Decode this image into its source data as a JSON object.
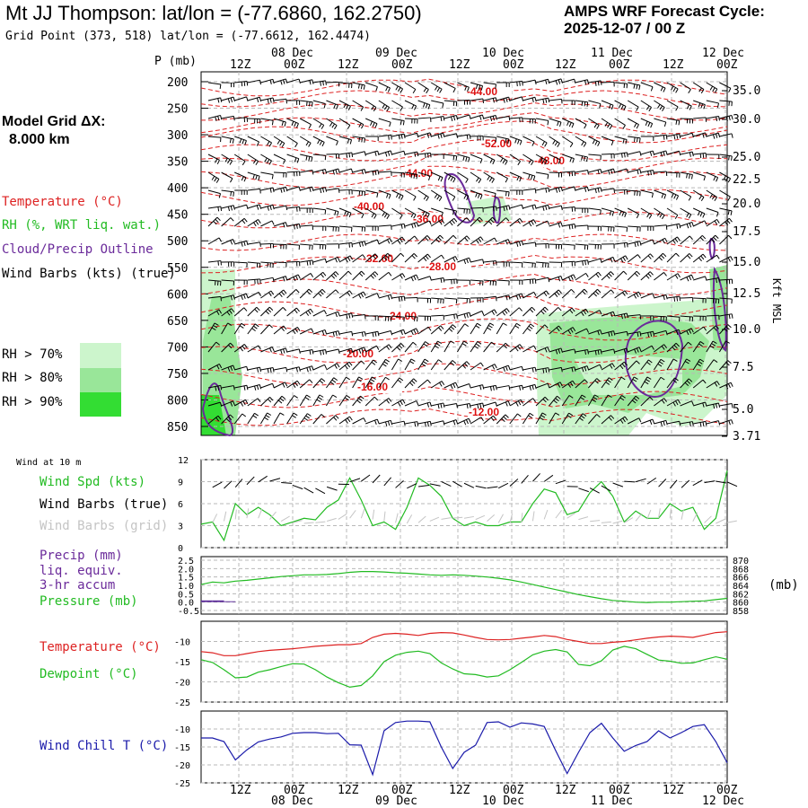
{
  "header": {
    "station_title": "Mt JJ Thompson:  lat/lon = (-77.6860, 162.2750)",
    "grid_point": "Grid Point (373, 518) lat/lon = (-77.6612, 162.4474)",
    "cycle_line1": "AMPS WRF Forecast Cycle:",
    "cycle_line2": "2025-12-07 / 00  Z",
    "model_grid_label": "Model Grid ΔX:",
    "model_grid_value": "8.000 km"
  },
  "legend": {
    "temperature": "Temperature (°C)",
    "rh": "RH (%, WRT liq. wat.)",
    "cloud": "Cloud/Precip Outline",
    "wind_barbs": "Wind Barbs (kts) (true)",
    "rh70": "RH > 70%",
    "rh80": "RH > 80%",
    "rh90": "RH > 90%",
    "rh70_color": "#ccf5cc",
    "rh80_color": "#99e699",
    "rh90_color": "#33dd33"
  },
  "time_axis": {
    "top_dates": [
      "08 Dec",
      "09 Dec",
      "10 Dec",
      "11 Dec",
      "12 Dec"
    ],
    "hour_labels": [
      "12Z",
      "00Z",
      "12Z",
      "00Z",
      "12Z",
      "00Z",
      "12Z",
      "00Z",
      "12Z",
      "00Z"
    ],
    "bottom_dates": [
      "08 Dec",
      "09 Dec",
      "10 Dec",
      "11 Dec",
      "12 Dec"
    ]
  },
  "chart_data": [
    {
      "type": "contour",
      "name": "vertical cross-section",
      "ylabel_left": "P (mb)",
      "ylabel_right": "Kft MSL",
      "y_ticks_left": [
        "200",
        "250",
        "300",
        "350",
        "400",
        "450",
        "500",
        "550",
        "600",
        "650",
        "700",
        "750",
        "800",
        "850"
      ],
      "y_ticks_right": [
        "35.0",
        "30.0",
        "25.0",
        "22.5",
        "20.0",
        "17.5",
        "15.0",
        "12.5",
        "10.0",
        "7.5",
        "5.0",
        "3.71"
      ],
      "temperature_contour_labels": [
        "-44.00",
        "-52.00",
        "-48.00",
        "-44.00",
        "-40.00",
        "-36.00",
        "-32.00",
        "-28.00",
        "-24.00",
        "-20.00",
        "-16.00",
        "-12.00"
      ]
    },
    {
      "type": "line",
      "name": "wind at 10 m",
      "title": "Wind at 10 m",
      "label_speed": "Wind Spd (kts)",
      "label_barbs_true": "Wind Barbs (true)",
      "label_barbs_grid": "Wind Barbs (grid)",
      "y_ticks": [
        "12",
        "9",
        "6",
        "3",
        "0"
      ],
      "ylim": [
        0,
        12
      ],
      "series": [
        {
          "name": "Wind Spd (kts)",
          "color": "#22bb22",
          "values": [
            3.2,
            3.5,
            1.0,
            6.0,
            4.5,
            5.5,
            4.5,
            3.0,
            3.5,
            4.0,
            3.8,
            5.5,
            6.5,
            9.5,
            6.5,
            3.0,
            3.5,
            2.5,
            5.5,
            9.5,
            8.5,
            7.0,
            4.0,
            3.0,
            3.5,
            3.0,
            3.0,
            3.5,
            3.5,
            6.0,
            8.0,
            7.5,
            4.5,
            5.0,
            7.5,
            9.0,
            7.0,
            3.5,
            5.0,
            4.0,
            4.0,
            6.0,
            5.0,
            5.5,
            2.5,
            4.0,
            10.5
          ]
        }
      ]
    },
    {
      "type": "line",
      "name": "precip and pressure",
      "label_precip": "Precip (mm)",
      "label_precip2": "liq. equiv.",
      "label_precip3": "3-hr accum",
      "label_pressure": "Pressure (mb)",
      "right_unit": "(mb)",
      "y_ticks_left": [
        "2.5",
        "2.0",
        "1.5",
        "1.0",
        "0.5",
        "0.0",
        "-0.5"
      ],
      "y_ticks_right": [
        "870",
        "868",
        "866",
        "864",
        "862",
        "860",
        "858"
      ],
      "ylim_left": [
        -0.5,
        2.5
      ],
      "ylim_right": [
        858,
        870
      ],
      "series": [
        {
          "name": "Pressure (mb)",
          "color": "#22bb22",
          "values": [
            864.2,
            864.8,
            864.6,
            865.0,
            865.2,
            865.5,
            865.8,
            866.1,
            866.3,
            866.5,
            866.5,
            866.6,
            866.8,
            867.1,
            867.3,
            867.3,
            867.2,
            867.0,
            866.9,
            866.7,
            866.5,
            866.4,
            866.5,
            866.4,
            866.2,
            866.0,
            865.7,
            865.3,
            864.8,
            864.2,
            863.6,
            863.0,
            862.4,
            861.8,
            861.3,
            860.8,
            860.4,
            860.2,
            860.0,
            859.9,
            860.0,
            860.0,
            860.1,
            860.2,
            860.3,
            860.6,
            860.9
          ]
        },
        {
          "name": "Precip (mm)",
          "color": "#5b2a99",
          "values": [
            0.1,
            0.1,
            0.05,
            0,
            0,
            0,
            0,
            0,
            0,
            0,
            0,
            0,
            0,
            0,
            0,
            0,
            0,
            0,
            0,
            0,
            0,
            0,
            0,
            0,
            0,
            0,
            0,
            0,
            0,
            0,
            0,
            0,
            0,
            0,
            0,
            0,
            0,
            0,
            0,
            0,
            0,
            0,
            0,
            0,
            0,
            0,
            0
          ]
        }
      ]
    },
    {
      "type": "line",
      "name": "temperature and dewpoint",
      "label_temp": "Temperature (°C)",
      "label_dew": "Dewpoint (°C)",
      "y_ticks": [
        "-10",
        "-15",
        "-20",
        "-25"
      ],
      "ylim": [
        -25,
        -5
      ],
      "series": [
        {
          "name": "Temperature (°C)",
          "color": "#dd2222",
          "values": [
            -12.5,
            -12.8,
            -13.5,
            -13.5,
            -13.0,
            -12.5,
            -12.2,
            -12.0,
            -11.8,
            -11.5,
            -11.2,
            -11.0,
            -10.8,
            -10.8,
            -10.5,
            -9.0,
            -8.2,
            -8.0,
            -8.2,
            -8.5,
            -8.0,
            -7.8,
            -7.9,
            -8.4,
            -9.0,
            -9.5,
            -9.6,
            -9.5,
            -9.2,
            -8.9,
            -8.5,
            -8.8,
            -9.5,
            -10.0,
            -10.5,
            -10.5,
            -10.2,
            -10.0,
            -9.6,
            -9.2,
            -8.9,
            -8.7,
            -8.8,
            -9.0,
            -8.4,
            -7.8,
            -7.6
          ]
        },
        {
          "name": "Dewpoint (°C)",
          "color": "#22bb22",
          "values": [
            -14.5,
            -15.2,
            -17.0,
            -19.0,
            -18.8,
            -17.6,
            -17.0,
            -16.2,
            -15.5,
            -15.6,
            -17.0,
            -18.8,
            -20.2,
            -21.3,
            -20.9,
            -18.5,
            -15.0,
            -13.4,
            -12.7,
            -12.4,
            -13.0,
            -15.3,
            -16.8,
            -18.0,
            -18.2,
            -18.8,
            -18.5,
            -17.0,
            -15.2,
            -13.3,
            -12.4,
            -12.0,
            -12.6,
            -15.7,
            -16.0,
            -14.8,
            -12.1,
            -11.2,
            -11.8,
            -13.2,
            -14.6,
            -14.9,
            -15.4,
            -15.3,
            -14.5,
            -13.8,
            -14.4
          ]
        }
      ]
    },
    {
      "type": "line",
      "name": "wind chill",
      "label": "Wind Chill T (°C)",
      "y_ticks": [
        "-10",
        "-15",
        "-20",
        "-25"
      ],
      "ylim": [
        -25,
        -5
      ],
      "series": [
        {
          "name": "Wind Chill T (°C)",
          "color": "#1a1aaa",
          "values": [
            -12.5,
            -12.5,
            -13.5,
            -18.6,
            -15.8,
            -13.6,
            -12.8,
            -12.2,
            -11.2,
            -11.0,
            -11.0,
            -11.3,
            -11.2,
            -14.4,
            -14.5,
            -22.7,
            -10.5,
            -8.2,
            -7.8,
            -7.8,
            -8.0,
            -15.0,
            -21.0,
            -16.5,
            -14.5,
            -8.2,
            -8.0,
            -9.5,
            -8.3,
            -8.6,
            -9.3,
            -16.0,
            -22.4,
            -16.5,
            -11.0,
            -8.4,
            -12.5,
            -16.2,
            -14.6,
            -13.5,
            -10.5,
            -12.5,
            -11.0,
            -9.3,
            -8.8,
            -13.5,
            -19.4
          ]
        }
      ]
    }
  ]
}
